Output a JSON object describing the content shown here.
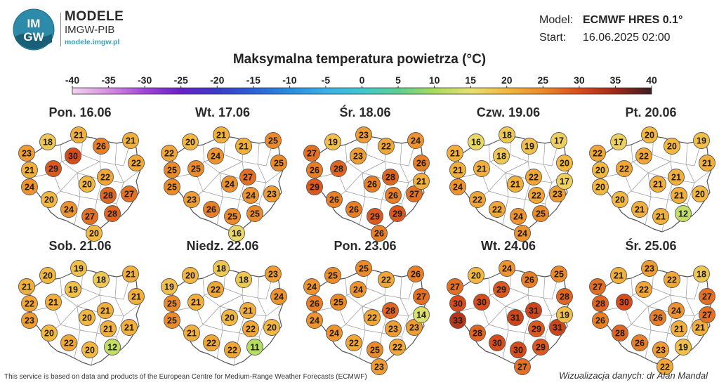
{
  "brand": {
    "logo_text_top": "IM",
    "logo_text_bottom": "GW",
    "title": "MODELE",
    "subtitle": "IMGW-PIB",
    "url": "modele.imgw.pl"
  },
  "model_info": {
    "model_label": "Model:",
    "model_value": "ECMWF HRES 0.1°",
    "start_label": "Start:",
    "start_value": "16.06.2025 02:00"
  },
  "title": "Maksymalna temperatura powietrza (°C)",
  "colorbar": {
    "ticks": [
      -40,
      -35,
      -30,
      -25,
      -20,
      -15,
      -10,
      -5,
      0,
      5,
      10,
      15,
      20,
      25,
      30,
      35,
      40
    ],
    "stops": [
      {
        "v": -40,
        "c": "#f4d2f0"
      },
      {
        "v": -35,
        "c": "#d88ee0"
      },
      {
        "v": -30,
        "c": "#a046d8"
      },
      {
        "v": -25,
        "c": "#6a20c8"
      },
      {
        "v": -20,
        "c": "#3a3cc8"
      },
      {
        "v": -15,
        "c": "#2a62d8"
      },
      {
        "v": -10,
        "c": "#2a8ce0"
      },
      {
        "v": -5,
        "c": "#3ab0e8"
      },
      {
        "v": 0,
        "c": "#40c8d0"
      },
      {
        "v": 5,
        "c": "#5cd090"
      },
      {
        "v": 10,
        "c": "#a8dc5c"
      },
      {
        "v": 15,
        "c": "#e8e070"
      },
      {
        "v": 20,
        "c": "#f4b840"
      },
      {
        "v": 25,
        "c": "#ec8a28"
      },
      {
        "v": 30,
        "c": "#d84c1c"
      },
      {
        "v": 35,
        "c": "#a02818"
      },
      {
        "v": 40,
        "c": "#3a2020"
      }
    ]
  },
  "city_positions": {
    "szczecin": "point",
    "gdansk": "point",
    "olsztyn": "point",
    "bialystok": "point"
  },
  "days": [
    {
      "label": "Pon. 16.06",
      "temps": [
        18,
        21,
        26,
        21,
        23,
        30,
        22,
        21,
        29,
        22,
        24,
        20,
        28,
        27,
        20,
        24,
        27,
        28,
        20
      ]
    },
    {
      "label": "Wt. 17.06",
      "temps": [
        20,
        21,
        21,
        25,
        22,
        24,
        25,
        25,
        25,
        27,
        25,
        24,
        24,
        23,
        23,
        26,
        25,
        25,
        16
      ]
    },
    {
      "label": "Śr. 18.06",
      "temps": [
        19,
        23,
        22,
        24,
        27,
        23,
        26,
        26,
        28,
        28,
        29,
        26,
        26,
        27,
        26,
        26,
        29,
        29,
        26,
        21
      ]
    },
    {
      "label": "Czw. 19.06",
      "temps": [
        16,
        18,
        19,
        17,
        21,
        18,
        20,
        21,
        21,
        22,
        24,
        21,
        22,
        23,
        22,
        22,
        24,
        25,
        24,
        17
      ]
    },
    {
      "label": "Pt. 20.06",
      "temps": [
        17,
        20,
        20,
        19,
        22,
        22,
        21,
        20,
        22,
        21,
        20,
        21,
        21,
        20,
        20,
        21,
        21,
        12
      ]
    },
    {
      "label": "Sob. 21.06",
      "temps": [
        20,
        19,
        18,
        21,
        21,
        19,
        21,
        22,
        21,
        21,
        23,
        20,
        21,
        21,
        20,
        22,
        20,
        12
      ]
    },
    {
      "label": "Niedz. 22.06",
      "temps": [
        20,
        18,
        18,
        23,
        19,
        22,
        24,
        25,
        21,
        21,
        25,
        20,
        22,
        20,
        21,
        22,
        22,
        11
      ]
    },
    {
      "label": "Pon. 23.06",
      "temps": [
        25,
        25,
        22,
        26,
        24,
        24,
        27,
        26,
        25,
        28,
        24,
        22,
        23,
        23,
        24,
        22,
        25,
        22,
        23,
        14
      ]
    },
    {
      "label": "Wt. 24.06",
      "temps": [
        20,
        24,
        26,
        25,
        27,
        29,
        28,
        30,
        30,
        31,
        33,
        31,
        29,
        31,
        28,
        30,
        30,
        29,
        27,
        19
      ]
    },
    {
      "label": "Śr. 25.06",
      "temps": [
        21,
        23,
        22,
        18,
        27,
        22,
        27,
        28,
        30,
        24,
        26,
        26,
        21,
        21,
        28,
        26,
        23,
        19,
        22,
        27
      ]
    }
  ],
  "footer": {
    "left": "This service is based on data and products of the European Centre for Medium-Range Weather Forecasts (ECMWF)",
    "right": "Wizualizacja danych: dr Alan Mandal"
  }
}
